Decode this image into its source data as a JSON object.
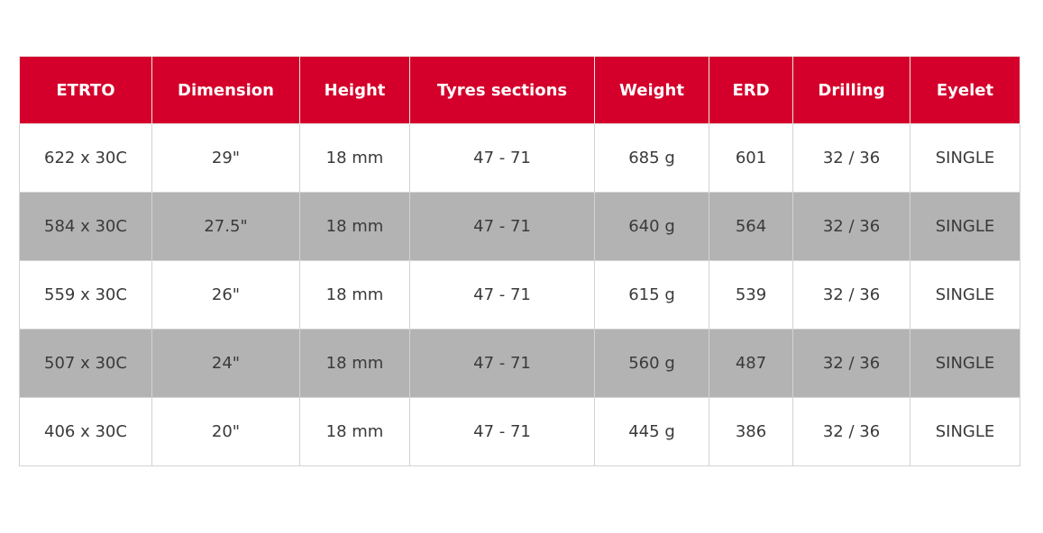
{
  "table": {
    "headers": [
      "ETRTO",
      "Dimension",
      "Height",
      "Tyres sections",
      "Weight",
      "ERD",
      "Drilling",
      "Eyelet"
    ],
    "rows": [
      [
        "622 x 30C",
        "29\"",
        "18 mm",
        "47 - 71",
        "685 g",
        "601",
        "32 / 36",
        "SINGLE"
      ],
      [
        "584 x 30C",
        "27.5\"",
        "18 mm",
        "47 - 71",
        "640 g",
        "564",
        "32 / 36",
        "SINGLE"
      ],
      [
        "559 x 30C",
        "26\"",
        "18 mm",
        "47 - 71",
        "615 g",
        "539",
        "32 / 36",
        "SINGLE"
      ],
      [
        "507 x 30C",
        "24\"",
        "18 mm",
        "47 - 71",
        "560 g",
        "487",
        "32 / 36",
        "SINGLE"
      ],
      [
        "406 x 30C",
        "20\"",
        "18 mm",
        "47 - 71",
        "445 g",
        "386",
        "32 / 36",
        "SINGLE"
      ]
    ]
  },
  "colors": {
    "header_background": "#d4002b",
    "header_text": "#ffffff",
    "stripe_background": "#b3b3b3",
    "cell_text": "#3a3a3a",
    "border": "#d3d3d3"
  }
}
